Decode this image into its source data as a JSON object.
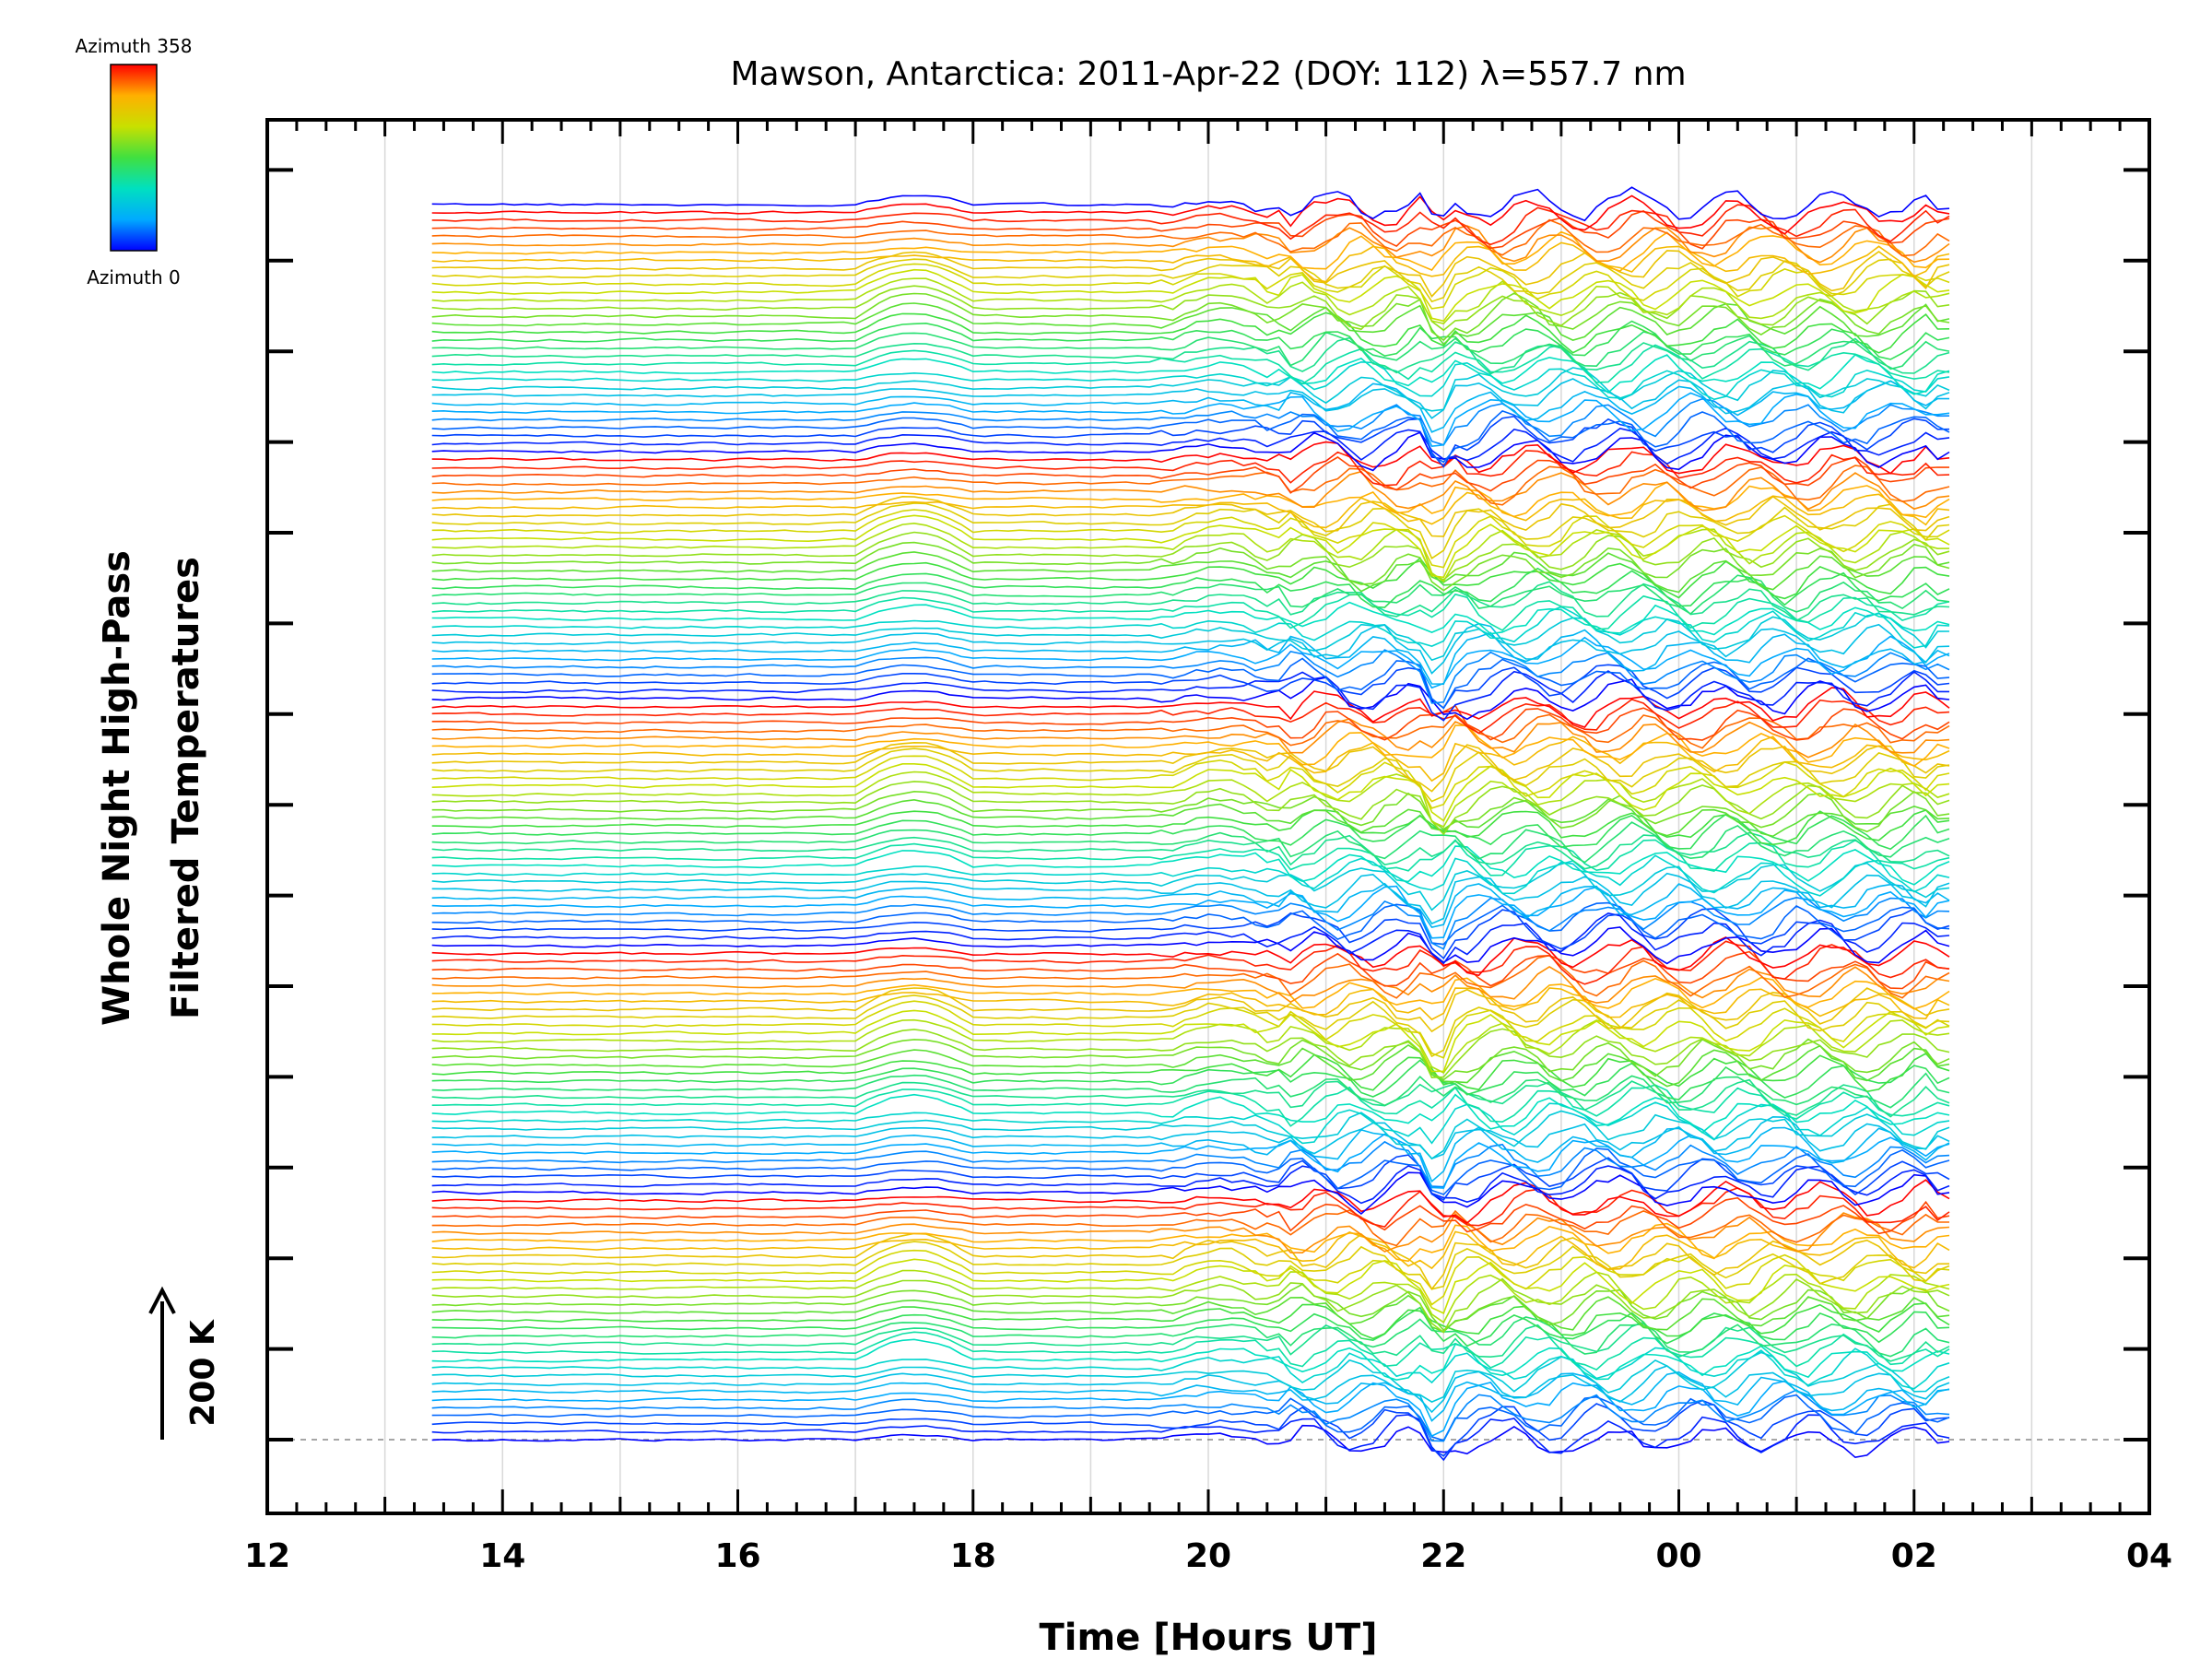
{
  "chart_data": {
    "type": "line",
    "title": "Mawson, Antarctica: 2011-Apr-22 (DOY: 112) λ=557.7 nm",
    "xlabel": "Time [Hours UT]",
    "ylabel_line1": "Whole Night High-Pass",
    "ylabel_line2": "Filtered Temperatures",
    "x_ticks": [
      "12",
      "14",
      "16",
      "18",
      "20",
      "22",
      "00",
      "02",
      "04"
    ],
    "xlim": [
      12,
      28
    ],
    "data_x_range": [
      13.4,
      26.3
    ],
    "sample_step_hours": 0.1,
    "series_count": 156,
    "legend": {
      "top_label": "Azimuth 358",
      "bottom_label": "Azimuth 0",
      "placement": "top-left",
      "colormap": [
        "#0000ff",
        "#00aaff",
        "#00e0c0",
        "#40e040",
        "#c8e000",
        "#ffb000",
        "#ff0000"
      ]
    },
    "scale_bar": {
      "label": "200 K",
      "direction": "up"
    },
    "grid": true
  }
}
